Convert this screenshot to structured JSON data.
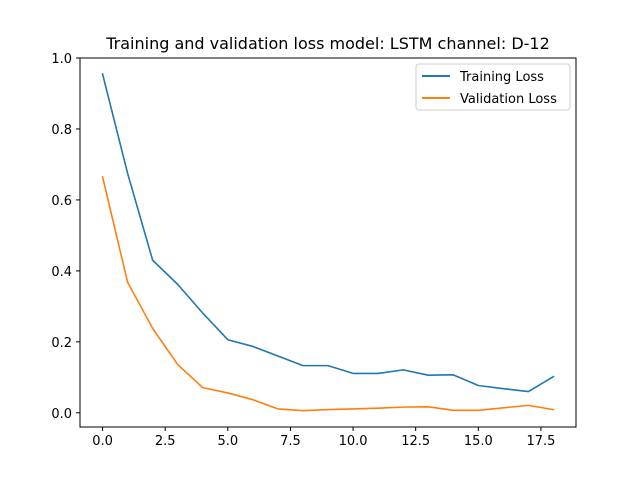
{
  "chart_data": {
    "type": "line",
    "title": "Training and validation loss model: LSTM channel: D-12",
    "xlabel": "",
    "ylabel": "",
    "xlim": [
      -0.9,
      18.9
    ],
    "ylim": [
      -0.04,
      1.0
    ],
    "xticks": [
      0.0,
      2.5,
      5.0,
      7.5,
      10.0,
      12.5,
      15.0,
      17.5
    ],
    "xtick_labels": [
      "0.0",
      "2.5",
      "5.0",
      "7.5",
      "10.0",
      "12.5",
      "15.0",
      "17.5"
    ],
    "yticks": [
      0.0,
      0.2,
      0.4,
      0.6,
      0.8,
      1.0
    ],
    "ytick_labels": [
      "0.0",
      "0.2",
      "0.4",
      "0.6",
      "0.8",
      "1.0"
    ],
    "grid": false,
    "legend_position": "top-right",
    "x": [
      0,
      1,
      2,
      3,
      4,
      5,
      6,
      7,
      8,
      9,
      10,
      11,
      12,
      13,
      14,
      15,
      16,
      17,
      18
    ],
    "series": [
      {
        "name": "Training Loss",
        "color": "#1f77b4",
        "values": [
          0.955,
          0.675,
          0.43,
          0.362,
          0.281,
          0.206,
          0.187,
          0.16,
          0.133,
          0.133,
          0.111,
          0.111,
          0.121,
          0.106,
          0.107,
          0.077,
          0.068,
          0.06,
          0.102
        ]
      },
      {
        "name": "Validation Loss",
        "color": "#ff7f0e",
        "values": [
          0.665,
          0.368,
          0.238,
          0.136,
          0.071,
          0.056,
          0.037,
          0.011,
          0.006,
          0.009,
          0.011,
          0.013,
          0.016,
          0.017,
          0.007,
          0.007,
          0.014,
          0.021,
          0.009
        ]
      }
    ]
  }
}
